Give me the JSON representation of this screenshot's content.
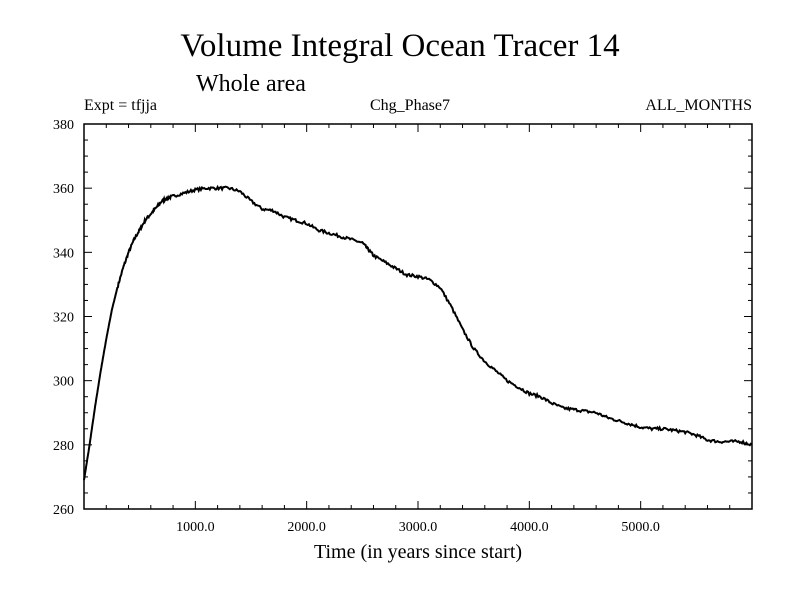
{
  "chart_data": {
    "type": "line",
    "title": "Volume Integral Ocean Tracer 14",
    "subtitle": "Whole area",
    "experiment_label": "Expt = tfjja",
    "phase_label": "Chg_Phase7",
    "months_label": "ALL_MONTHS",
    "xlabel": "Time (in years since start)",
    "ylabel": "",
    "xlim": [
      0,
      6000
    ],
    "ylim": [
      260,
      380
    ],
    "xticks": [
      1000,
      2000,
      3000,
      4000,
      5000
    ],
    "xtick_labels": [
      "1000.0",
      "2000.0",
      "3000.0",
      "4000.0",
      "5000.0"
    ],
    "yticks": [
      260,
      280,
      300,
      320,
      340,
      360,
      380
    ],
    "ytick_labels": [
      "260",
      "280",
      "300",
      "320",
      "340",
      "360",
      "380"
    ],
    "grid": false,
    "line_color": "#000000",
    "series": [
      {
        "x": [
          0,
          50,
          100,
          150,
          200,
          250,
          300,
          350,
          400,
          450,
          500,
          550,
          600,
          650,
          700,
          750,
          800,
          900,
          1000,
          1100,
          1200,
          1300,
          1400,
          1500,
          1600,
          1700,
          1800,
          1900,
          2000,
          2100,
          2200,
          2300,
          2400,
          2500,
          2550,
          2600,
          2700,
          2800,
          2900,
          3000,
          3100,
          3200,
          3300,
          3400,
          3500,
          3600,
          3700,
          3800,
          3900,
          4000,
          4100,
          4200,
          4300,
          4400,
          4500,
          4600,
          4700,
          4800,
          4900,
          5000,
          5100,
          5200,
          5300,
          5400,
          5500,
          5600,
          5700,
          5800,
          5900,
          6000
        ],
        "y": [
          269,
          280,
          292,
          303,
          313,
          322,
          329,
          335,
          340,
          344,
          347,
          350,
          352,
          354,
          356,
          357,
          357.5,
          358.5,
          359.5,
          360,
          360,
          360,
          359,
          356,
          353.5,
          353,
          351,
          350,
          349,
          347,
          346,
          345,
          344,
          343,
          341,
          339,
          337,
          335,
          333,
          332.5,
          331.5,
          329,
          323,
          316,
          310,
          306,
          303,
          300,
          298,
          296,
          295,
          293,
          291.5,
          291,
          290.5,
          290,
          288.5,
          287.5,
          286.5,
          285.5,
          285,
          285,
          284.5,
          284,
          283,
          281.5,
          281,
          281,
          281,
          280
        ]
      }
    ]
  }
}
